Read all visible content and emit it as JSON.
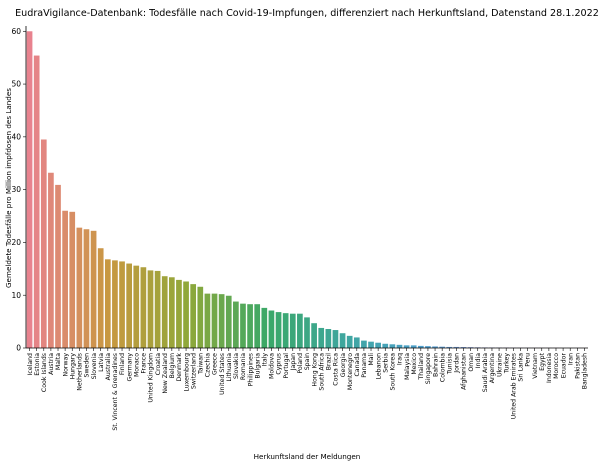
{
  "chart_data": {
    "type": "bar",
    "title": "EudraVigilance-Datenbank: Todesfälle nach Covid-19-Impfungen, differenziert nach Herkunftsland, Datenstand 28.1.2022",
    "xlabel": "Herkunftsland der Meldungen",
    "ylabel": "Gemeldete Todesfälle pro Million impfdosen des Landes",
    "ylim": [
      0,
      61
    ],
    "yticks": [
      0,
      10,
      20,
      30,
      40,
      50,
      60
    ],
    "grid": false,
    "categories": [
      "Iceland",
      "Estonia",
      "Cook Islands",
      "Austria",
      "Malta",
      "Norway",
      "Hungary",
      "Netherlands",
      "Sweden",
      "Slovenia",
      "Latvia",
      "Australia",
      "St. Vincent & Grenadines",
      "Finland",
      "Germany",
      "Monaco",
      "France",
      "United Kingdom",
      "Croatia",
      "New Zealand",
      "Belgium",
      "Denmark",
      "Luxembourg",
      "Switzerland",
      "Taiwan",
      "Czechia",
      "Greece",
      "United States",
      "Lithuania",
      "Slovakia",
      "Romania",
      "Philippines",
      "Bulgaria",
      "Italy",
      "Moldova",
      "Cyprus",
      "Portugal",
      "Japan",
      "Poland",
      "Spain",
      "Hong Kong",
      "South Africa",
      "Brazil",
      "Costa Rica",
      "Georgia",
      "Montenegro",
      "Canada",
      "Panama",
      "Mali",
      "Lebanon",
      "Serbia",
      "South Korea",
      "Iraq",
      "Malaysia",
      "Mexico",
      "Thailand",
      "Singapore",
      "Bahrain",
      "Colombia",
      "Tunisia",
      "Jordan",
      "Afghanistan",
      "Oman",
      "India",
      "Saudi Arabia",
      "Argentina",
      "Ukraine",
      "Turkey",
      "United Arab Emirates",
      "Sri Lanka",
      "Peru",
      "Vietnam",
      "Egypt",
      "Indonesia",
      "Morocco",
      "Ecuador",
      "Iran",
      "Pakistan",
      "Bangladesh"
    ],
    "values": [
      60.0,
      55.4,
      39.5,
      33.2,
      30.9,
      26.0,
      25.8,
      22.8,
      22.5,
      22.2,
      18.9,
      16.8,
      16.6,
      16.4,
      16.0,
      15.6,
      15.3,
      14.7,
      14.6,
      13.6,
      13.4,
      12.9,
      12.6,
      12.1,
      11.6,
      10.3,
      10.3,
      10.2,
      9.9,
      8.8,
      8.4,
      8.3,
      8.3,
      7.6,
      7.1,
      6.8,
      6.6,
      6.5,
      6.5,
      5.8,
      4.7,
      3.8,
      3.6,
      3.4,
      2.8,
      2.3,
      2.0,
      1.4,
      1.2,
      1.0,
      0.8,
      0.7,
      0.6,
      0.5,
      0.5,
      0.4,
      0.35,
      0.3,
      0.25,
      0.2,
      0.2,
      0.18,
      0.15,
      0.12,
      0.1,
      0.08,
      0.07,
      0.06,
      0.05,
      0.04,
      0.03,
      0.03,
      0.02,
      0.02,
      0.02,
      0.01,
      0.01,
      0.01,
      0.01
    ],
    "palette": [
      "#e8828e",
      "#c89840",
      "#8fa83a",
      "#3aa868",
      "#3fa6a0",
      "#4e9fcf",
      "#a492d8",
      "#e87ec9"
    ]
  }
}
